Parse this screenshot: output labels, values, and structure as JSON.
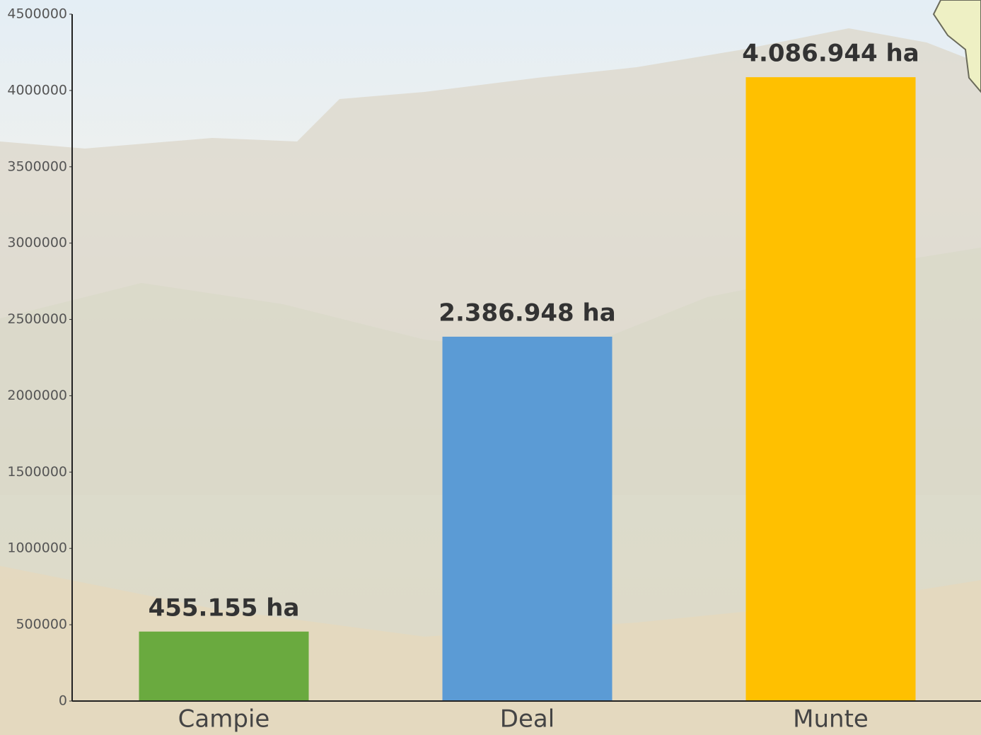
{
  "chart_data": {
    "type": "bar",
    "categories": [
      "Campie",
      "Deal",
      "Munte"
    ],
    "values": [
      455155,
      2386948,
      4086944
    ],
    "value_labels": [
      "455.155 ha",
      "2.386.948 ha",
      "4.086.944 ha"
    ],
    "colors": [
      "#6aaa3f",
      "#5b9bd5",
      "#ffc000"
    ],
    "ylim": [
      0,
      4500000
    ],
    "yticks": [
      0,
      500000,
      1000000,
      1500000,
      2000000,
      2500000,
      3000000,
      3500000,
      4000000,
      4500000
    ]
  }
}
